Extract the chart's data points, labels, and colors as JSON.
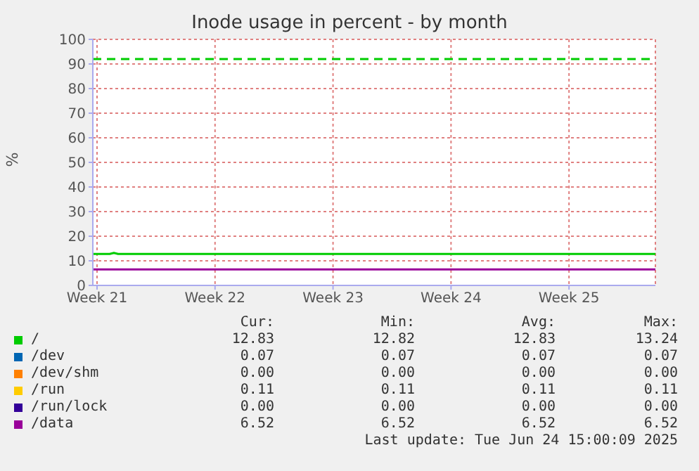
{
  "chart_data": {
    "type": "line",
    "title": "Inode usage in percent - by month",
    "ylabel": "%",
    "x": [
      "2025-05-22T06:00",
      "2025-05-23T06:00",
      "2025-05-23T12:00",
      "2025-05-23T18:00",
      "2025-06-24T15:00"
    ],
    "series": [
      {
        "name": "/",
        "color": "#00cc00",
        "values": [
          12.8,
          12.8,
          13.2,
          12.8,
          12.8
        ]
      },
      {
        "name": "/dev",
        "color": "#0066b3",
        "values": [
          null,
          null,
          null,
          null,
          null
        ]
      },
      {
        "name": "/dev/shm",
        "color": "#ff8000",
        "values": [
          null,
          null,
          null,
          null,
          null
        ]
      },
      {
        "name": "/run",
        "color": "#ffcc00",
        "values": [
          null,
          null,
          null,
          null,
          null
        ]
      },
      {
        "name": "/run/lock",
        "color": "#330099",
        "values": [
          null,
          null,
          null,
          null,
          null
        ]
      },
      {
        "name": "/data",
        "color": "#990099",
        "values": [
          6.5,
          6.5,
          6.5,
          6.5,
          6.5
        ]
      }
    ],
    "xlim": [
      "2025-05-22T06:00",
      "2025-06-24T15:00"
    ],
    "xticks": [
      {
        "value": "2025-05-22T12:00",
        "label": "Week 21"
      },
      {
        "value": "2025-05-29T12:00",
        "label": "Week 22"
      },
      {
        "value": "2025-06-05T12:00",
        "label": "Week 23"
      },
      {
        "value": "2025-06-12T12:00",
        "label": "Week 24"
      },
      {
        "value": "2025-06-19T12:00",
        "label": "Week 25"
      }
    ],
    "ylim": [
      0,
      100
    ],
    "yticks": [
      0,
      10,
      20,
      30,
      40,
      50,
      60,
      70,
      80,
      90,
      100
    ],
    "ref_lines": [
      {
        "axis": "y",
        "value": 92,
        "color": "#00cc00",
        "line_style": "dashed"
      }
    ],
    "grid": true,
    "legend": "bottom",
    "marker": "none",
    "line_style": "solid",
    "annotations": [
      "Cur:",
      "Min:",
      "Avg:",
      "Max:",
      "12.83",
      "12.82",
      "12.83",
      "13.24",
      "0.07",
      "0.07",
      "0.07",
      "0.07",
      "0.00",
      "0.00",
      "0.00",
      "0.00",
      "0.11",
      "0.11",
      "0.11",
      "0.11",
      "0.00",
      "0.00",
      "0.00",
      "0.00",
      "6.52",
      "6.52",
      "6.52",
      "6.52",
      "Last update: Tue Jun 24 15:00:09 2025"
    ]
  }
}
